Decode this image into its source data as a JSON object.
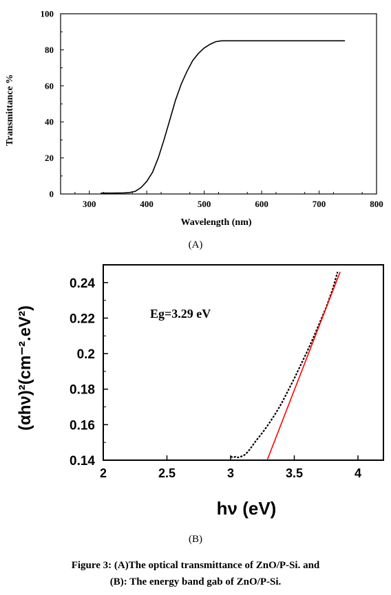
{
  "figure": {
    "panel_a_label": "(A)",
    "panel_b_label": "(B)",
    "caption_line1": "Figure 3: (A)The optical transmittance of ZnO/P-Si. and",
    "caption_line2": "(B): The energy band gab of ZnO/P-Si."
  },
  "chart_data": [
    {
      "type": "line",
      "xlabel": "Wavelength (nm)",
      "ylabel": "Transmittance %",
      "xlim": [
        250,
        800
      ],
      "ylim": [
        0,
        100
      ],
      "xticks": [
        300,
        400,
        500,
        600,
        700,
        800
      ],
      "yticks": [
        0,
        20,
        40,
        60,
        80,
        100
      ],
      "grid": false,
      "series": [
        {
          "color": "#000000",
          "x": [
            320,
            340,
            360,
            370,
            380,
            390,
            400,
            410,
            420,
            430,
            440,
            450,
            460,
            470,
            480,
            490,
            500,
            510,
            520,
            530,
            540,
            560,
            600,
            650,
            700,
            745
          ],
          "y": [
            0.5,
            0.5,
            0.6,
            0.8,
            1.5,
            3.5,
            7,
            12,
            20,
            30,
            41,
            52,
            61,
            68,
            74,
            78,
            81,
            83,
            84.5,
            85,
            85,
            85,
            85,
            85,
            85,
            85
          ]
        }
      ]
    },
    {
      "type": "line",
      "xlabel": "hν (eV)",
      "ylabel": "(αhν)²(cm⁻².eV²)",
      "annotation": "Eg=3.29 eV",
      "xlim": [
        2,
        4.2
      ],
      "ylim": [
        0.14,
        0.25
      ],
      "xticks": [
        2,
        2.5,
        3,
        3.5,
        4
      ],
      "xtick_labels": [
        "2",
        "2.5",
        "3",
        "3.5",
        "4"
      ],
      "yticks": [
        0.14,
        0.16,
        0.18,
        0.2,
        0.22,
        0.24
      ],
      "ytick_labels": [
        "0.14",
        "0.16",
        "0.18",
        "0.2",
        "0.22",
        "0.24"
      ],
      "grid": false,
      "series": [
        {
          "style": "dashed",
          "color": "#000000",
          "x": [
            3.0,
            3.02,
            3.04,
            3.06,
            3.08,
            3.1,
            3.12,
            3.15,
            3.2,
            3.25,
            3.3,
            3.35,
            3.4,
            3.45,
            3.5,
            3.55,
            3.6,
            3.65,
            3.7,
            3.75,
            3.8,
            3.84
          ],
          "y": [
            0.142,
            0.1415,
            0.142,
            0.1415,
            0.142,
            0.1425,
            0.1435,
            0.146,
            0.151,
            0.1555,
            0.1605,
            0.166,
            0.172,
            0.179,
            0.186,
            0.1935,
            0.201,
            0.209,
            0.2175,
            0.226,
            0.236,
            0.246
          ]
        },
        {
          "style": "solid",
          "color": "#ff0000",
          "x": [
            3.29,
            3.86
          ],
          "y": [
            0.1405,
            0.246
          ]
        }
      ]
    }
  ]
}
